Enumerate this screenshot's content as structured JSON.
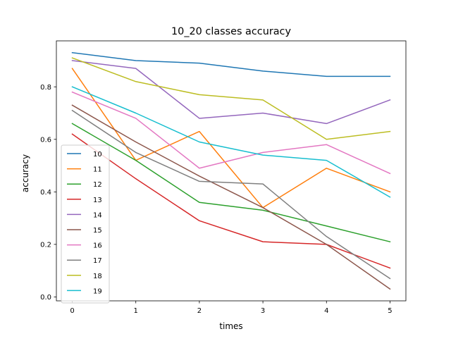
{
  "chart_data": {
    "type": "line",
    "title": "10_20 classes accuracy",
    "xlabel": "times",
    "ylabel": "accuracy",
    "x": [
      0,
      1,
      2,
      3,
      4,
      5
    ],
    "xlim": [
      -0.25,
      5.25
    ],
    "ylim": [
      -0.015,
      0.975
    ],
    "xticks": [
      "0",
      "1",
      "2",
      "3",
      "4",
      "5"
    ],
    "yticks": [
      0.0,
      0.2,
      0.4,
      0.6,
      0.8
    ],
    "ytick_labels": [
      "0.0",
      "0.2",
      "0.4",
      "0.6",
      "0.8"
    ],
    "grid": false,
    "legend_position": "center-left",
    "series": [
      {
        "name": "10",
        "color": "#1f77b4",
        "values": [
          0.93,
          0.9,
          0.89,
          0.86,
          0.84,
          0.84
        ]
      },
      {
        "name": "11",
        "color": "#ff7f0e",
        "values": [
          0.87,
          0.52,
          0.63,
          0.34,
          0.49,
          0.4
        ]
      },
      {
        "name": "12",
        "color": "#2ca02c",
        "values": [
          0.66,
          0.52,
          0.36,
          0.33,
          0.27,
          0.21
        ]
      },
      {
        "name": "13",
        "color": "#d62728",
        "values": [
          0.62,
          0.45,
          0.29,
          0.21,
          0.2,
          0.11
        ]
      },
      {
        "name": "14",
        "color": "#9467bd",
        "values": [
          0.9,
          0.87,
          0.68,
          0.7,
          0.66,
          0.75
        ]
      },
      {
        "name": "15",
        "color": "#8c564b",
        "values": [
          0.73,
          0.59,
          0.46,
          0.34,
          0.2,
          0.03
        ]
      },
      {
        "name": "16",
        "color": "#e377c2",
        "values": [
          0.78,
          0.68,
          0.49,
          0.55,
          0.58,
          0.47
        ]
      },
      {
        "name": "17",
        "color": "#7f7f7f",
        "values": [
          0.71,
          0.55,
          0.44,
          0.43,
          0.23,
          0.07
        ]
      },
      {
        "name": "18",
        "color": "#bcbd22",
        "values": [
          0.91,
          0.82,
          0.77,
          0.75,
          0.6,
          0.63
        ]
      },
      {
        "name": "19",
        "color": "#17becf",
        "values": [
          0.8,
          0.7,
          0.59,
          0.54,
          0.52,
          0.38
        ]
      }
    ]
  }
}
